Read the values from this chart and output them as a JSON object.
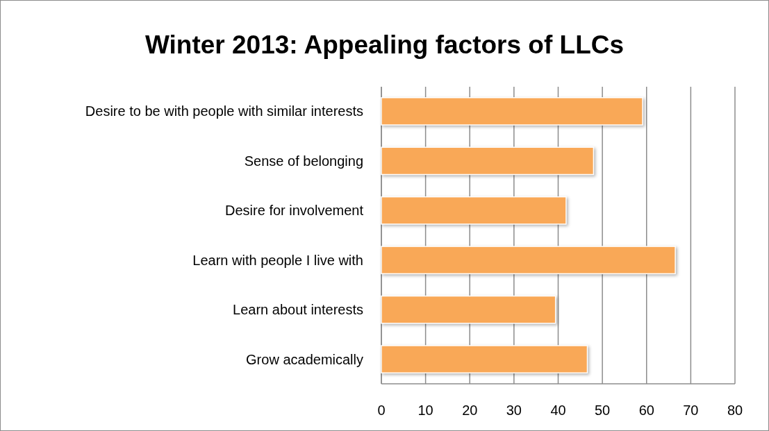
{
  "chart_data": {
    "type": "bar",
    "orientation": "horizontal",
    "title": "Winter 2013: Appealing factors of LLCs",
    "categories": [
      "Desire to be with people with similar interests",
      "Sense of belonging",
      "Desire for involvement",
      "Learn with people I live with",
      "Learn about interests",
      "Grow academically"
    ],
    "values": [
      59.1,
      48,
      41.8,
      66.5,
      39.4,
      46.6
    ],
    "color": "#f9a857",
    "xlim": [
      0,
      80
    ],
    "xticks": [
      0,
      10,
      20,
      30,
      40,
      50,
      60,
      70,
      80
    ],
    "grid": "x"
  }
}
